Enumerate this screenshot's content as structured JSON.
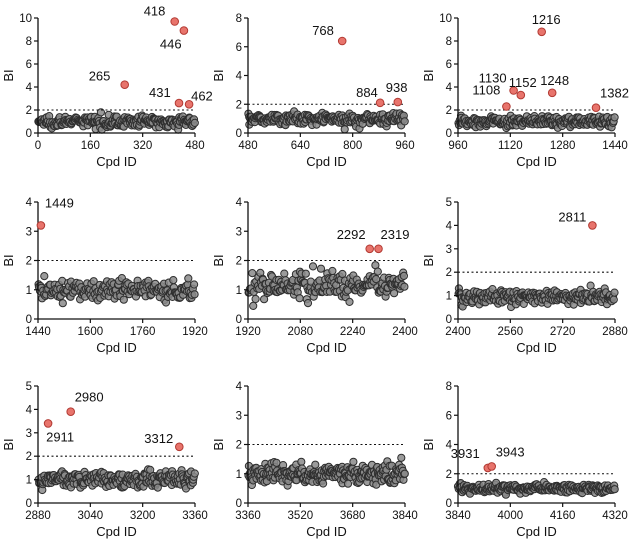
{
  "chart_data": [
    {
      "type": "scatter",
      "xlabel": "Cpd ID",
      "ylabel": "BI",
      "xlim": [
        0,
        480
      ],
      "ylim": [
        0,
        10
      ],
      "xticks": [
        "0",
        "160",
        "320",
        "480"
      ],
      "yticks": [
        "0",
        "2",
        "4",
        "6",
        "8",
        "10"
      ],
      "threshold": 2,
      "background": {
        "x_start": 0,
        "x_end": 480,
        "count": 240,
        "mean": 1.0,
        "spread": 0.4
      },
      "hits": [
        {
          "label": "265",
          "x": 265,
          "y": 4.2
        },
        {
          "label": "418",
          "x": 418,
          "y": 9.7
        },
        {
          "label": "446",
          "x": 446,
          "y": 8.9
        },
        {
          "label": "431",
          "x": 431,
          "y": 2.6
        },
        {
          "label": "462",
          "x": 462,
          "y": 2.5
        }
      ]
    },
    {
      "type": "scatter",
      "xlabel": "Cpd ID",
      "ylabel": "BI",
      "xlim": [
        480,
        960
      ],
      "ylim": [
        0,
        8
      ],
      "xticks": [
        "480",
        "640",
        "800",
        "960"
      ],
      "yticks": [
        "0",
        "2",
        "4",
        "6",
        "8"
      ],
      "threshold": 2,
      "background": {
        "x_start": 480,
        "x_end": 960,
        "count": 240,
        "mean": 1.0,
        "spread": 0.35
      },
      "hits": [
        {
          "label": "768",
          "x": 768,
          "y": 6.4
        },
        {
          "label": "884",
          "x": 884,
          "y": 2.1
        },
        {
          "label": "938",
          "x": 938,
          "y": 2.15
        }
      ]
    },
    {
      "type": "scatter",
      "xlabel": "Cpd ID",
      "ylabel": "BI",
      "xlim": [
        960,
        1440
      ],
      "ylim": [
        0,
        10
      ],
      "xticks": [
        "960",
        "1120",
        "1280",
        "1440"
      ],
      "yticks": [
        "0",
        "2",
        "4",
        "6",
        "8",
        "10"
      ],
      "threshold": 2,
      "background": {
        "x_start": 960,
        "x_end": 1440,
        "count": 240,
        "mean": 1.0,
        "spread": 0.4
      },
      "hits": [
        {
          "label": "1108",
          "x": 1108,
          "y": 2.3
        },
        {
          "label": "1130",
          "x": 1130,
          "y": 3.7
        },
        {
          "label": "1152",
          "x": 1152,
          "y": 3.3
        },
        {
          "label": "1216",
          "x": 1216,
          "y": 8.8
        },
        {
          "label": "1248",
          "x": 1248,
          "y": 3.5
        },
        {
          "label": "1382",
          "x": 1382,
          "y": 2.2
        }
      ]
    },
    {
      "type": "scatter",
      "xlabel": "Cpd ID",
      "ylabel": "BI",
      "xlim": [
        1440,
        1920
      ],
      "ylim": [
        0,
        4
      ],
      "xticks": [
        "1440",
        "1600",
        "1760",
        "1920"
      ],
      "yticks": [
        "0",
        "1",
        "2",
        "3",
        "4"
      ],
      "threshold": 2,
      "background": {
        "x_start": 1440,
        "x_end": 1920,
        "count": 200,
        "mean": 1.0,
        "spread": 0.3
      },
      "hits": [
        {
          "label": "1449",
          "x": 1449,
          "y": 3.2
        }
      ]
    },
    {
      "type": "scatter",
      "xlabel": "Cpd ID",
      "ylabel": "BI",
      "xlim": [
        1920,
        2400
      ],
      "ylim": [
        0,
        4
      ],
      "xticks": [
        "1920",
        "2080",
        "2240",
        "2400"
      ],
      "yticks": [
        "0",
        "1",
        "2",
        "3",
        "4"
      ],
      "threshold": 2,
      "background": {
        "x_start": 1920,
        "x_end": 2400,
        "count": 200,
        "mean": 1.15,
        "spread": 0.35
      },
      "hits": [
        {
          "label": "2292",
          "x": 2292,
          "y": 2.4
        },
        {
          "label": "2319",
          "x": 2319,
          "y": 2.4
        }
      ]
    },
    {
      "type": "scatter",
      "xlabel": "Cpd ID",
      "ylabel": "BI",
      "xlim": [
        2400,
        2880
      ],
      "ylim": [
        0,
        5
      ],
      "xticks": [
        "2400",
        "2560",
        "2720",
        "2880"
      ],
      "yticks": [
        "0",
        "1",
        "2",
        "3",
        "4",
        "5"
      ],
      "threshold": 2,
      "background": {
        "x_start": 2400,
        "x_end": 2880,
        "count": 220,
        "mean": 0.95,
        "spread": 0.25
      },
      "hits": [
        {
          "label": "2811",
          "x": 2811,
          "y": 4.0
        }
      ]
    },
    {
      "type": "scatter",
      "xlabel": "Cpd ID",
      "ylabel": "BI",
      "xlim": [
        2880,
        3360
      ],
      "ylim": [
        0,
        5
      ],
      "xticks": [
        "2880",
        "3040",
        "3200",
        "3360"
      ],
      "yticks": [
        "0",
        "1",
        "2",
        "3",
        "4",
        "5"
      ],
      "threshold": 2,
      "background": {
        "x_start": 2880,
        "x_end": 3360,
        "count": 240,
        "mean": 1.0,
        "spread": 0.3
      },
      "hits": [
        {
          "label": "2911",
          "x": 2911,
          "y": 3.4
        },
        {
          "label": "2980",
          "x": 2980,
          "y": 3.9
        },
        {
          "label": "3312",
          "x": 3312,
          "y": 2.4
        }
      ]
    },
    {
      "type": "scatter",
      "xlabel": "Cpd ID",
      "ylabel": "BI",
      "xlim": [
        3360,
        3840
      ],
      "ylim": [
        0,
        4
      ],
      "xticks": [
        "3360",
        "3520",
        "3680",
        "3840"
      ],
      "yticks": [
        "0",
        "1",
        "2",
        "3",
        "4"
      ],
      "threshold": 2,
      "background": {
        "x_start": 3360,
        "x_end": 3840,
        "count": 260,
        "mean": 1.0,
        "spread": 0.3
      },
      "hits": []
    },
    {
      "type": "scatter",
      "xlabel": "Cpd ID",
      "ylabel": "BI",
      "xlim": [
        3840,
        4320
      ],
      "ylim": [
        0,
        8
      ],
      "xticks": [
        "3840",
        "4000",
        "4160",
        "4320"
      ],
      "yticks": [
        "0",
        "2",
        "4",
        "6",
        "8"
      ],
      "threshold": 2,
      "background": {
        "x_start": 3840,
        "x_end": 4320,
        "count": 240,
        "mean": 1.0,
        "spread": 0.25
      },
      "hits": [
        {
          "label": "3931",
          "x": 3931,
          "y": 2.4
        },
        {
          "label": "3943",
          "x": 3943,
          "y": 2.5
        }
      ]
    }
  ],
  "colors": {
    "hit_fill": "#e8746c",
    "hit_stroke": "#b23a33",
    "bg_fill": "#8a8a8a",
    "bg_stroke": "#2e2e2e",
    "axis": "#111111"
  }
}
